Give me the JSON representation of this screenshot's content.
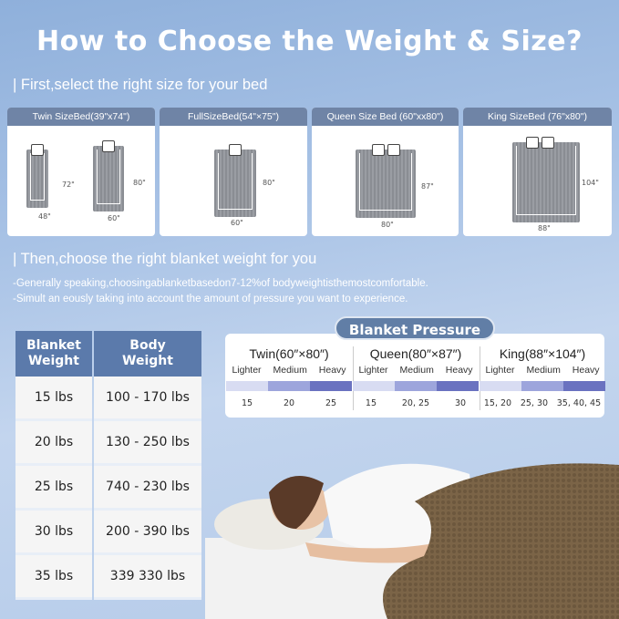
{
  "title": "How to Choose the Weight & Size?",
  "step1": "| First,select the right size for your bed",
  "beds": [
    {
      "label": "Twin SizeBed(39\"x74\")",
      "dims": [
        "72\"",
        "48\"",
        "80\"",
        "60\""
      ]
    },
    {
      "label": "FullSizeBed(54\"×75\")",
      "dims": [
        "80\"",
        "60\""
      ]
    },
    {
      "label": "Queen Size Bed  (60\"xx80\")",
      "dims": [
        "87\"",
        "80\""
      ]
    },
    {
      "label": "King SizeBed (76\"x80\")",
      "dims": [
        "104\"",
        "88\""
      ]
    }
  ],
  "step2": "| Then,choose the right blanket weight for you",
  "notes": [
    "-Generally speaking,choosingablanketbasedon7-12%of bodyweightisthemostcomfortable.",
    "-Simult an eously taking into account the amount of pressure you want to experience."
  ],
  "table": {
    "headers": [
      "Blanket Weight",
      "Body Weight"
    ],
    "rows": [
      [
        "15 lbs",
        "100 - 170 lbs"
      ],
      [
        "20 lbs",
        "130 - 250 lbs"
      ],
      [
        "25 lbs",
        "740 - 230 lbs"
      ],
      [
        "30 lbs",
        "200 - 390 lbs"
      ],
      [
        "35 lbs",
        "339  330 lbs"
      ]
    ]
  },
  "pressure": {
    "title": "Blanket Pressure",
    "levels": [
      "Lighter",
      "Medium",
      "Heavy"
    ],
    "level_colors": [
      "#d8dcf2",
      "#9da5dc",
      "#6a72c0"
    ],
    "groups": [
      {
        "name": "Twin(60″×80″)",
        "values": [
          "15",
          "20",
          "25"
        ]
      },
      {
        "name": "Queen(80″×87″)",
        "values": [
          "15",
          "20, 25",
          "30"
        ]
      },
      {
        "name": "King(88″×104″)",
        "values": [
          "15, 20",
          "25, 30",
          "35, 40, 45"
        ]
      }
    ]
  }
}
